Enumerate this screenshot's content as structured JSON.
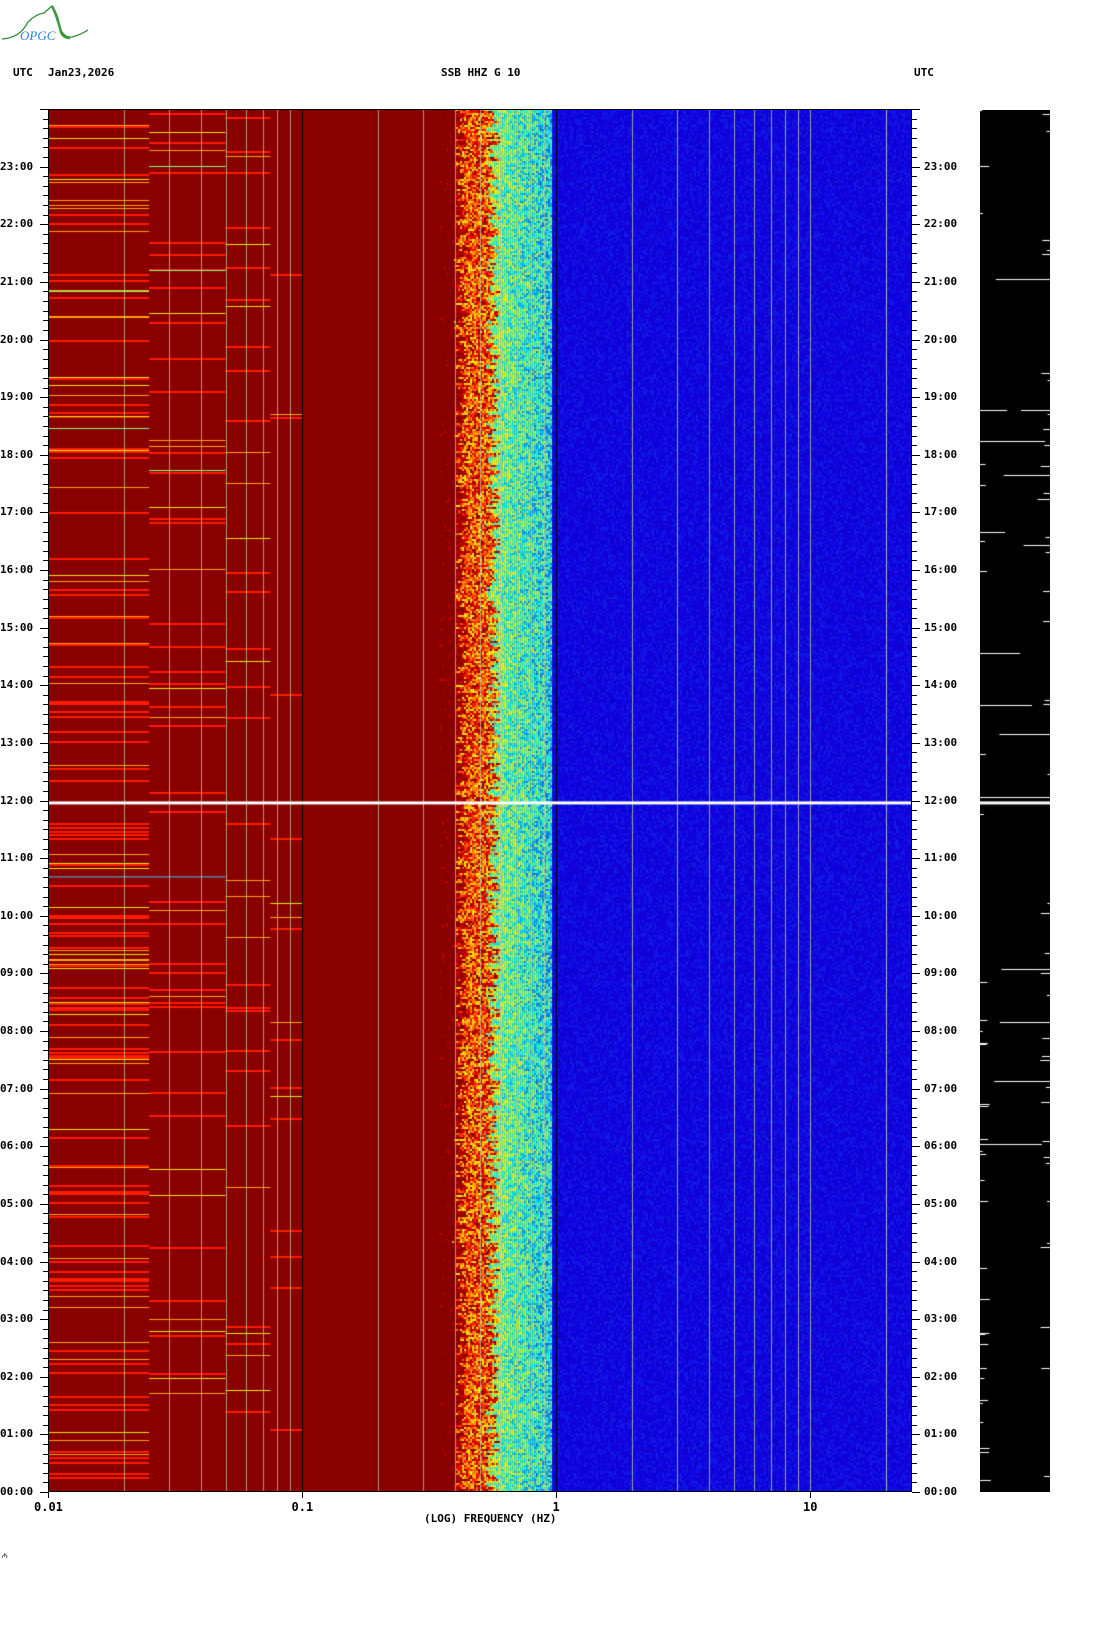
{
  "header": {
    "left_tz": "UTC",
    "date": "Jan23,2026",
    "station": "SSB HHZ G 10",
    "right_tz": "UTC",
    "logo_text": "OPGC"
  },
  "footer_mark": "₼",
  "colors": {
    "low_power": "#880000",
    "high_power_bg": "#0010a8",
    "mid": "#00e0ff",
    "peak": "#ffff00",
    "trace": "#000000",
    "gap": "#ffffff"
  },
  "chart_data": {
    "type": "heatmap",
    "title": "SSB HHZ G 10",
    "xlabel": "(LOG) FREQUENCY (HZ)",
    "ylabel": "",
    "xscale": "log",
    "xlim": [
      0.01,
      25
    ],
    "x_ticks": [
      "0.01",
      "0.1",
      "1",
      "10"
    ],
    "ylim": [
      "00:00",
      "24:00"
    ],
    "y_ticks": [
      "00:00",
      "01:00",
      "02:00",
      "03:00",
      "04:00",
      "05:00",
      "06:00",
      "07:00",
      "08:00",
      "09:00",
      "10:00",
      "11:00",
      "12:00",
      "13:00",
      "14:00",
      "15:00",
      "16:00",
      "17:00",
      "18:00",
      "19:00",
      "20:00",
      "21:00",
      "22:00",
      "23:00"
    ],
    "grid": "vertical",
    "dominant_band_hz": [
      0.4,
      0.95
    ],
    "data_gap_time": "11:58",
    "side_panel": "seismogram trace"
  }
}
